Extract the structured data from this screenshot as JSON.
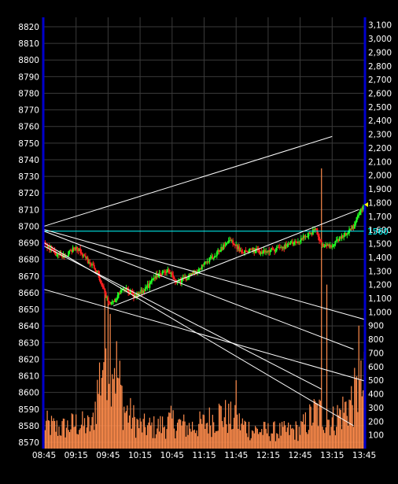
{
  "chart_data": {
    "type": "candlestick+volume",
    "title": "",
    "xlabel": "",
    "ylabel": "",
    "x_ticks": [
      "08:45",
      "09:15",
      "09:45",
      "10:15",
      "10:45",
      "11:15",
      "11:45",
      "12:15",
      "12:45",
      "13:15",
      "13:45"
    ],
    "price_axis": {
      "side": "left",
      "ylim": [
        8565,
        8825
      ],
      "ticks": [
        8570,
        8580,
        8590,
        8600,
        8610,
        8620,
        8630,
        8640,
        8650,
        8660,
        8670,
        8680,
        8690,
        8700,
        8710,
        8720,
        8730,
        8740,
        8750,
        8760,
        8770,
        8780,
        8790,
        8800,
        8810,
        8820
      ]
    },
    "volume_axis": {
      "side": "right",
      "ylim": [
        0,
        3150
      ],
      "ticks": [
        100,
        200,
        300,
        400,
        500,
        600,
        700,
        800,
        900,
        1000,
        1100,
        1200,
        1300,
        1400,
        1500,
        1600,
        1700,
        1800,
        1900,
        2000,
        2100,
        2200,
        2300,
        2400,
        2500,
        2600,
        2700,
        2800,
        2900,
        3000,
        3100
      ],
      "tick_labels": [
        "100",
        "200",
        "300",
        "400",
        "500",
        "600",
        "700",
        "800",
        "900",
        "1,000",
        "1,100",
        "1,200",
        "1,300",
        "1,400",
        "1,500",
        "1,600",
        "1,700",
        "1,800",
        "1,900",
        "2,000",
        "2,100",
        "2,200",
        "2,300",
        "2,400",
        "2,500",
        "2,600",
        "2,700",
        "2,800",
        "2,900",
        "3,000",
        "3,100"
      ]
    },
    "price_path": [
      [
        "08:45",
        8690
      ],
      [
        "08:55",
        8684
      ],
      [
        "09:05",
        8682
      ],
      [
        "09:15",
        8688
      ],
      [
        "09:25",
        8680
      ],
      [
        "09:35",
        8672
      ],
      [
        "09:45",
        8654
      ],
      [
        "09:50",
        8655
      ],
      [
        "10:00",
        8663
      ],
      [
        "10:10",
        8658
      ],
      [
        "10:20",
        8662
      ],
      [
        "10:30",
        8670
      ],
      [
        "10:40",
        8674
      ],
      [
        "10:50",
        8666
      ],
      [
        "11:00",
        8670
      ],
      [
        "11:10",
        8674
      ],
      [
        "11:20",
        8680
      ],
      [
        "11:30",
        8686
      ],
      [
        "11:40",
        8692
      ],
      [
        "11:50",
        8684
      ],
      [
        "12:00",
        8686
      ],
      [
        "12:10",
        8684
      ],
      [
        "12:20",
        8686
      ],
      [
        "12:30",
        8688
      ],
      [
        "12:40",
        8690
      ],
      [
        "12:50",
        8694
      ],
      [
        "13:00",
        8698
      ],
      [
        "13:05",
        8688
      ],
      [
        "13:10",
        8688
      ],
      [
        "13:15",
        8688
      ],
      [
        "13:25",
        8694
      ],
      [
        "13:35",
        8700
      ],
      [
        "13:40",
        8708
      ],
      [
        "13:45",
        8714
      ]
    ],
    "volume_profile": [
      [
        "08:45",
        200
      ],
      [
        "09:00",
        160
      ],
      [
        "09:15",
        200
      ],
      [
        "09:30",
        180
      ],
      [
        "09:45",
        1000
      ],
      [
        "10:00",
        320
      ],
      [
        "10:15",
        180
      ],
      [
        "10:30",
        170
      ],
      [
        "10:45",
        220
      ],
      [
        "11:00",
        170
      ],
      [
        "11:15",
        200
      ],
      [
        "11:30",
        280
      ],
      [
        "11:45",
        220
      ],
      [
        "12:00",
        150
      ],
      [
        "12:15",
        140
      ],
      [
        "12:30",
        140
      ],
      [
        "12:45",
        150
      ],
      [
        "13:00",
        300
      ],
      [
        "13:15",
        220
      ],
      [
        "13:30",
        350
      ],
      [
        "13:45",
        500
      ]
    ],
    "volume_spikes": [
      [
        "09:45",
        1100
      ],
      [
        "11:45",
        500
      ],
      [
        "13:05",
        2050
      ],
      [
        "13:10",
        1200
      ],
      [
        "13:40",
        900
      ]
    ],
    "reference_level": {
      "value": 8697,
      "label": "1560",
      "color": "#00ffff"
    },
    "trendlines": [
      {
        "from": [
          "08:45",
          8700
        ],
        "to": [
          "13:15",
          8754
        ]
      },
      {
        "from": [
          "08:45",
          8698
        ],
        "to": [
          "13:45",
          8644
        ]
      },
      {
        "from": [
          "08:45",
          8697
        ],
        "to": [
          "13:35",
          8626
        ]
      },
      {
        "from": [
          "08:45",
          8662
        ],
        "to": [
          "13:45",
          8607
        ]
      },
      {
        "from": [
          "08:45",
          8690
        ],
        "to": [
          "13:35",
          8580
        ]
      },
      {
        "from": [
          "08:45",
          8688
        ],
        "to": [
          "13:05",
          8602
        ]
      },
      {
        "from": [
          "09:50",
          8652
        ],
        "to": [
          "13:40",
          8710
        ]
      }
    ],
    "last_marker": {
      "value": 8713,
      "color": "#ffff00"
    },
    "colors": {
      "background": "#000000",
      "grid": "#3a3a3a",
      "frame": "#0000cc",
      "axis_text": "#ffffff",
      "up": "#22ff22",
      "down": "#ff2020",
      "volume": "#ff8c4c",
      "trendline": "#ffffff",
      "reference": "#00ffff"
    }
  }
}
